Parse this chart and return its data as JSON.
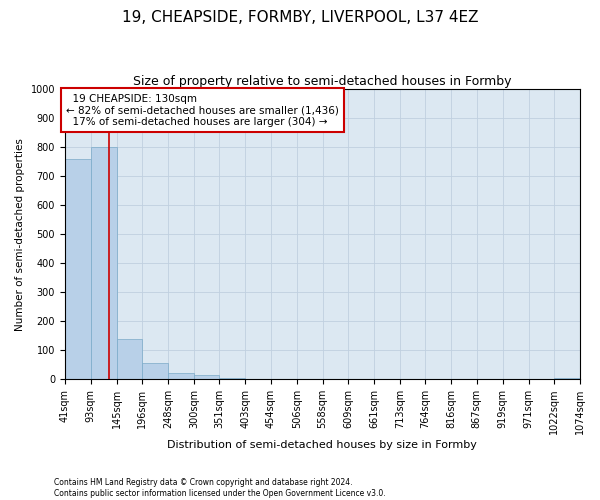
{
  "title": "19, CHEAPSIDE, FORMBY, LIVERPOOL, L37 4EZ",
  "subtitle": "Size of property relative to semi-detached houses in Formby",
  "xlabel": "Distribution of semi-detached houses by size in Formby",
  "ylabel": "Number of semi-detached properties",
  "footer_line1": "Contains HM Land Registry data © Crown copyright and database right 2024.",
  "footer_line2": "Contains public sector information licensed under the Open Government Licence v3.0.",
  "bin_edges": [
    41,
    93,
    145,
    196,
    248,
    300,
    351,
    403,
    454,
    506,
    558,
    609,
    661,
    713,
    764,
    816,
    867,
    919,
    971,
    1022,
    1074
  ],
  "bar_heights": [
    760,
    800,
    140,
    55,
    20,
    15,
    4,
    2,
    1,
    1,
    0,
    1,
    0,
    0,
    0,
    0,
    0,
    0,
    0,
    3
  ],
  "bar_color": "#b8d0e8",
  "bar_edge_color": "#7aaac8",
  "property_size": 130,
  "property_label": "19 CHEAPSIDE: 130sqm",
  "pct_smaller": 82,
  "count_smaller": 1436,
  "pct_larger": 17,
  "count_larger": 304,
  "redline_color": "#cc0000",
  "annotation_box_color": "#cc0000",
  "ylim": [
    0,
    1000
  ],
  "yticks": [
    0,
    100,
    200,
    300,
    400,
    500,
    600,
    700,
    800,
    900,
    1000
  ],
  "grid_color": "#c0d0e0",
  "bg_color": "#dce8f2",
  "title_fontsize": 11,
  "subtitle_fontsize": 9,
  "ylabel_fontsize": 7.5,
  "xlabel_fontsize": 8,
  "tick_fontsize": 7,
  "footer_fontsize": 5.5,
  "annotation_fontsize": 7.5
}
